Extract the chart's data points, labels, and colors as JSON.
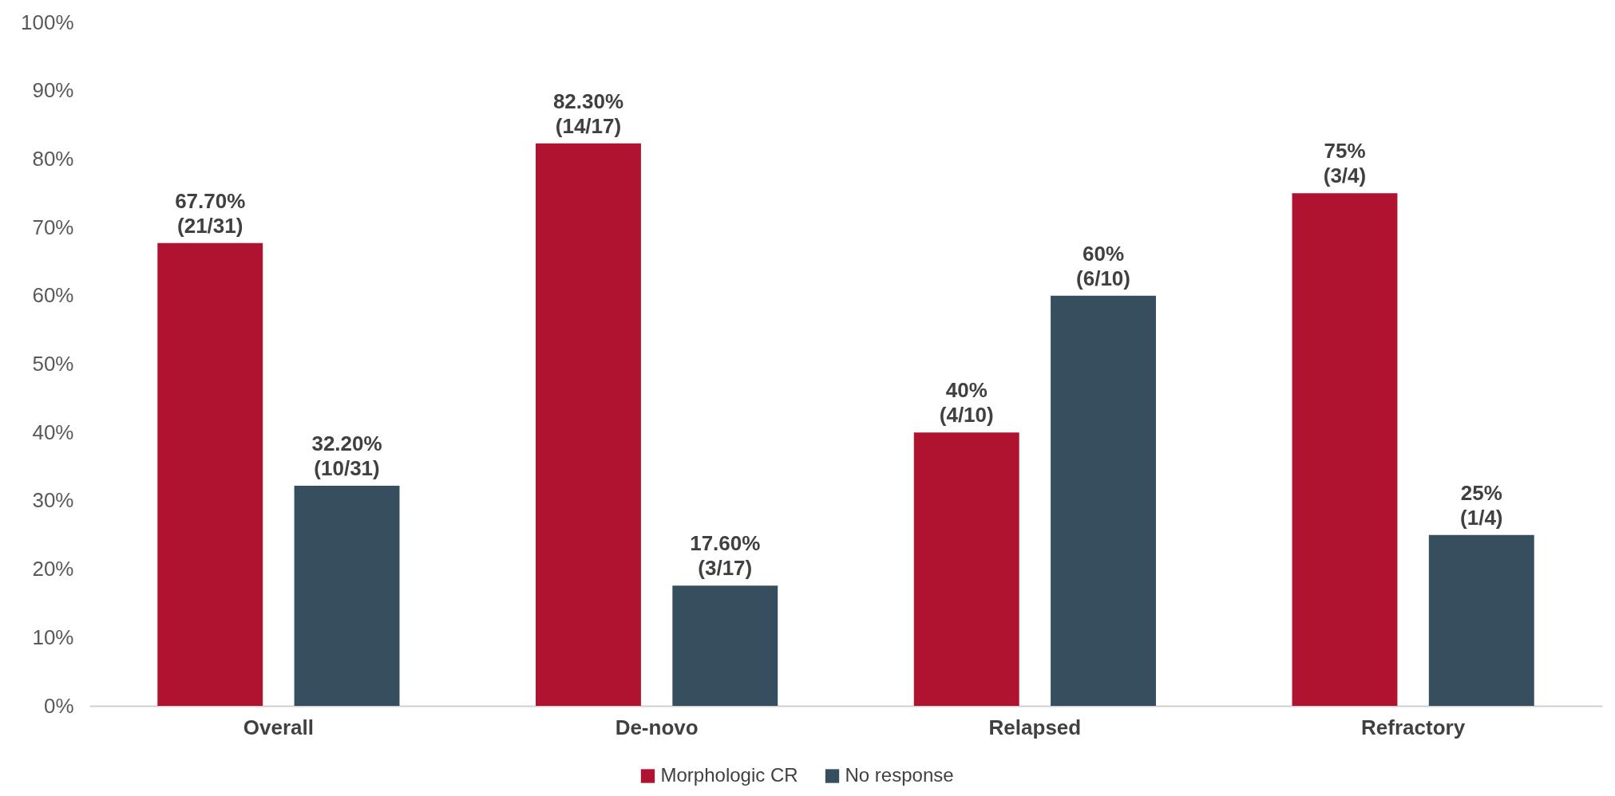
{
  "chart_data": {
    "type": "bar",
    "categories": [
      "Overall",
      "De-novo",
      "Relapsed",
      "Refractory"
    ],
    "series": [
      {
        "name": "Morphologic CR",
        "color": "#b0132f",
        "values": [
          67.7,
          82.3,
          40,
          75
        ],
        "value_labels": [
          "67.70%\n(21/31)",
          "82.30%\n(14/17)",
          "40%\n(4/10)",
          "75%\n(3/4)"
        ]
      },
      {
        "name": "No response",
        "color": "#374e5f",
        "values": [
          32.2,
          17.6,
          60,
          25
        ],
        "value_labels": [
          "32.20%\n(10/31)",
          "17.60%\n(3/17)",
          "60%\n(6/10)",
          "25%\n(1/4)"
        ]
      }
    ],
    "ylim": [
      0,
      100
    ],
    "yticks": [
      {
        "value": 0,
        "label": "0%"
      },
      {
        "value": 10,
        "label": "10%"
      },
      {
        "value": 20,
        "label": "20%"
      },
      {
        "value": 30,
        "label": "30%"
      },
      {
        "value": 40,
        "label": "40%"
      },
      {
        "value": 50,
        "label": "50%"
      },
      {
        "value": 60,
        "label": "60%"
      },
      {
        "value": 70,
        "label": "70%"
      },
      {
        "value": 80,
        "label": "80%"
      },
      {
        "value": 90,
        "label": "90%"
      },
      {
        "value": 100,
        "label": "100%"
      }
    ],
    "grid": false,
    "legend": "bottom"
  }
}
